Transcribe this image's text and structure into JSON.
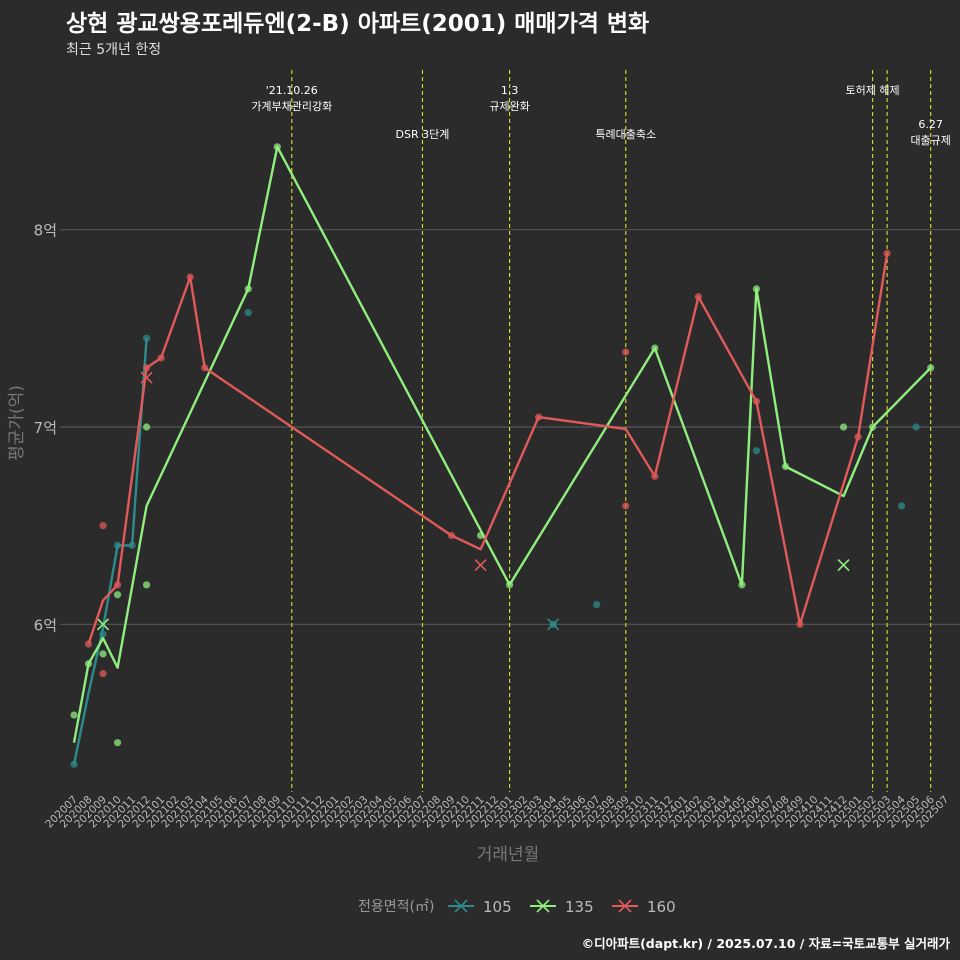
{
  "title": "상현 광교쌍용포레듀엔(2-B) 아파트(2001) 매매가격 변화",
  "subtitle": "최근 5개년 한정",
  "caption": "©디아파트(dapt.kr) / 2025.07.10 / 자료=국토교통부 실거래가",
  "colors": {
    "background": "#2b2b2b",
    "grid": "#555555",
    "event_line": "#d8e02a",
    "s105": "#2e8b8b",
    "s135": "#90ee7e",
    "s160": "#e05a5a"
  },
  "chart_data": {
    "type": "line",
    "xlabel": "거래년월",
    "ylabel": "평균가(억)",
    "ylim": [
      5.15,
      8.85
    ],
    "y_ticks": [
      {
        "value": 6,
        "label": "6억"
      },
      {
        "value": 7,
        "label": "7억"
      },
      {
        "value": 8,
        "label": "8억"
      }
    ],
    "x_ticks": [
      "202007",
      "202008",
      "202009",
      "202010",
      "202011",
      "202012",
      "202101",
      "202102",
      "202103",
      "202104",
      "202105",
      "202106",
      "202107",
      "202108",
      "202109",
      "202110",
      "202111",
      "202112",
      "202201",
      "202202",
      "202203",
      "202204",
      "202205",
      "202206",
      "202207",
      "202208",
      "202209",
      "202210",
      "202211",
      "202212",
      "202301",
      "202302",
      "202303",
      "202304",
      "202305",
      "202306",
      "202307",
      "202308",
      "202309",
      "202310",
      "202311",
      "202312",
      "202401",
      "202402",
      "202403",
      "202404",
      "202405",
      "202406",
      "202407",
      "202408",
      "202409",
      "202410",
      "202411",
      "202412",
      "202501",
      "202502",
      "202503",
      "202504",
      "202505",
      "202506",
      "202507"
    ],
    "legend": {
      "title": "전용면적(㎡)",
      "position": "bottom"
    },
    "events": [
      {
        "month": "202110",
        "lines": [
          "'21.10.26",
          "가계부채관리강화"
        ],
        "row": "high"
      },
      {
        "month": "202207",
        "lines": [
          "DSR 3단계"
        ],
        "row": "low"
      },
      {
        "month": "202301",
        "lines": [
          "1.3",
          "규제완화"
        ],
        "row": "high"
      },
      {
        "month": "202309",
        "lines": [
          "특례대출축소"
        ],
        "row": "low"
      },
      {
        "month": "202502",
        "lines": [
          "토허제 해제"
        ],
        "row": "high"
      },
      {
        "month": "202503",
        "lines": [],
        "row": "high"
      },
      {
        "month": "202506",
        "lines": [
          "6.27",
          "대출규제"
        ],
        "row": "low"
      }
    ],
    "series": [
      {
        "name": "105",
        "color": "#2e8b8b",
        "line": [
          [
            "202007",
            5.29
          ],
          [
            "202008",
            5.65
          ],
          [
            "202009",
            5.98
          ],
          [
            "202010",
            6.4
          ],
          [
            "202011",
            6.4
          ],
          [
            "202012",
            7.45
          ]
        ],
        "points": [
          [
            "202007",
            5.29
          ],
          [
            "202009",
            5.95
          ],
          [
            "202010",
            6.4
          ],
          [
            "202011",
            6.4
          ],
          [
            "202012",
            7.45
          ],
          [
            "202107",
            7.58
          ],
          [
            "202304",
            6.0
          ],
          [
            "202307",
            6.1
          ],
          [
            "202406",
            6.88
          ],
          [
            "202504",
            6.6
          ],
          [
            "202505",
            7.0
          ]
        ],
        "crosses": [
          [
            "202009",
            6.0
          ],
          [
            "202304",
            6.0
          ]
        ]
      },
      {
        "name": "135",
        "color": "#90ee7e",
        "line": [
          [
            "202007",
            5.4
          ],
          [
            "202008",
            5.8
          ],
          [
            "202009",
            5.93
          ],
          [
            "202010",
            5.78
          ],
          [
            "202012",
            6.6
          ],
          [
            "202107",
            7.7
          ],
          [
            "202109",
            8.42
          ],
          [
            "202301",
            6.2
          ],
          [
            "202311",
            7.4
          ],
          [
            "202405",
            6.2
          ],
          [
            "202406",
            7.7
          ],
          [
            "202408",
            6.8
          ],
          [
            "202412",
            6.65
          ],
          [
            "202502",
            7.0
          ],
          [
            "202506",
            7.3
          ]
        ],
        "points": [
          [
            "202007",
            5.54
          ],
          [
            "202008",
            5.8
          ],
          [
            "202009",
            5.85
          ],
          [
            "202010",
            5.4
          ],
          [
            "202010",
            6.15
          ],
          [
            "202012",
            6.2
          ],
          [
            "202012",
            7.0
          ],
          [
            "202107",
            7.7
          ],
          [
            "202109",
            8.42
          ],
          [
            "202211",
            6.45
          ],
          [
            "202301",
            6.2
          ],
          [
            "202311",
            7.4
          ],
          [
            "202405",
            6.2
          ],
          [
            "202406",
            7.7
          ],
          [
            "202408",
            6.8
          ],
          [
            "202412",
            7.0
          ],
          [
            "202502",
            7.0
          ],
          [
            "202506",
            7.3
          ]
        ],
        "crosses": [
          [
            "202009",
            6.0
          ],
          [
            "202412",
            6.3
          ]
        ]
      },
      {
        "name": "160",
        "color": "#e05a5a",
        "line": [
          [
            "202008",
            5.9
          ],
          [
            "202009",
            6.12
          ],
          [
            "202010",
            6.2
          ],
          [
            "202012",
            7.3
          ],
          [
            "202101",
            7.35
          ],
          [
            "202103",
            7.76
          ],
          [
            "202104",
            7.3
          ],
          [
            "202209",
            6.45
          ],
          [
            "202211",
            6.38
          ],
          [
            "202303",
            7.05
          ],
          [
            "202309",
            6.99
          ],
          [
            "202311",
            6.75
          ],
          [
            "202402",
            7.66
          ],
          [
            "202406",
            7.13
          ],
          [
            "202409",
            6.0
          ],
          [
            "202501",
            6.95
          ],
          [
            "202503",
            7.88
          ]
        ],
        "points": [
          [
            "202008",
            5.9
          ],
          [
            "202009",
            6.5
          ],
          [
            "202009",
            5.75
          ],
          [
            "202010",
            6.2
          ],
          [
            "202012",
            7.3
          ],
          [
            "202101",
            7.35
          ],
          [
            "202103",
            7.76
          ],
          [
            "202104",
            7.3
          ],
          [
            "202209",
            6.45
          ],
          [
            "202303",
            7.05
          ],
          [
            "202309",
            7.38
          ],
          [
            "202309",
            6.6
          ],
          [
            "202311",
            6.75
          ],
          [
            "202402",
            7.66
          ],
          [
            "202406",
            7.13
          ],
          [
            "202409",
            6.0
          ],
          [
            "202501",
            6.95
          ],
          [
            "202503",
            7.88
          ]
        ],
        "crosses": [
          [
            "202012",
            7.25
          ],
          [
            "202211",
            6.3
          ]
        ]
      }
    ]
  }
}
